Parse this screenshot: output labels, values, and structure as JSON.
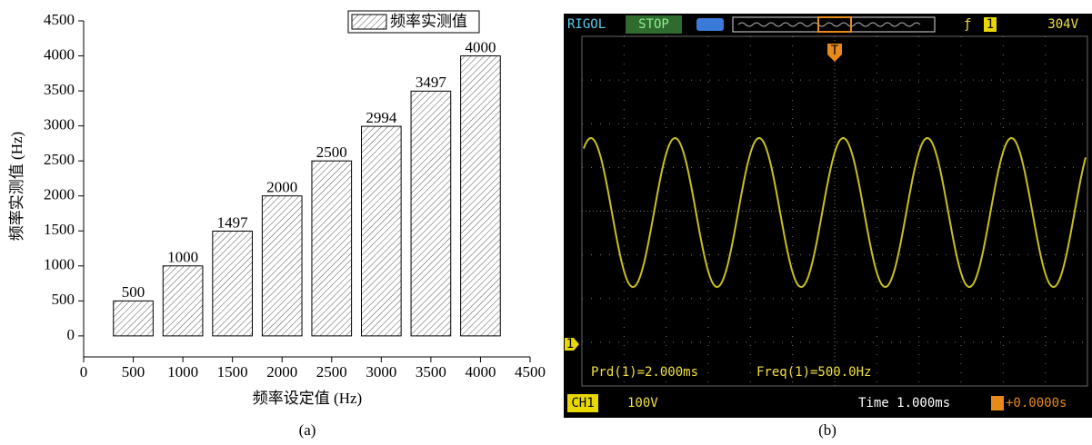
{
  "chart_data": {
    "type": "bar",
    "x_label": "频率设定值 (Hz)",
    "y_label": "频率实测值 (Hz)",
    "x": [
      500,
      1000,
      1500,
      2000,
      2500,
      3000,
      3500,
      4000
    ],
    "series": [
      {
        "name": "频率实测值",
        "color": "#ffffff",
        "values": [
          500,
          1000,
          1497,
          2000,
          2500,
          2994,
          3497,
          4000
        ]
      }
    ],
    "xlim": [
      0,
      4500
    ],
    "xticks": [
      0,
      500,
      1000,
      1500,
      2000,
      2500,
      3000,
      3500,
      4000,
      4500
    ],
    "ylim": [
      -300,
      4500
    ],
    "yticks": [
      0,
      500,
      1000,
      1500,
      2000,
      2500,
      3000,
      3500,
      4000,
      4500
    ],
    "hatch": true,
    "legend": "top-right",
    "caption": "(a)"
  },
  "scope": {
    "brand": "RIGOL",
    "state": "STOP",
    "trigger_channel": "1",
    "trigger_level": "304V",
    "trigger_marker": "T",
    "channel_marker": "1",
    "measure_period": "Prd(1)=2.000ms",
    "measure_freq": "Freq(1)=500.0Hz",
    "channel": "CH1",
    "volts_div": "100V",
    "time_div": "Time 1.000ms",
    "offset": "+0.0000s",
    "caption": "(b)"
  }
}
